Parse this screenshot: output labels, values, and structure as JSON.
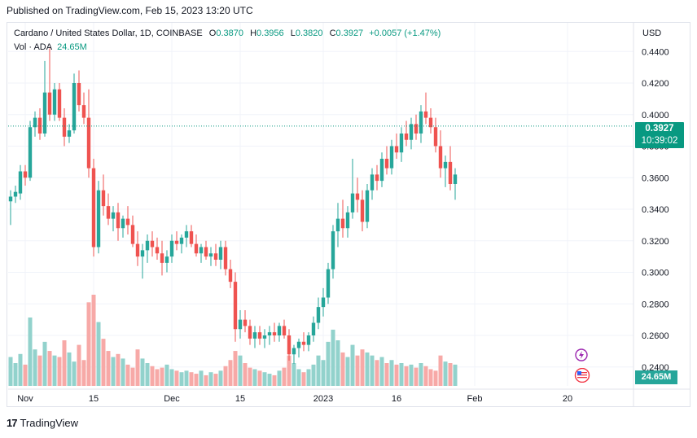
{
  "header": {
    "published": "Published on TradingView.com, Feb 15, 2023 13:20 UTC"
  },
  "legend": {
    "symbol": "Cardano / United States Dollar, 1D, COINBASE",
    "open_label": "O",
    "open": "0.3870",
    "high_label": "H",
    "high": "0.3956",
    "low_label": "L",
    "low": "0.3820",
    "close_label": "C",
    "close": "0.3927",
    "change": "+0.0057 (+1.47%)",
    "vol_label": "Vol · ADA",
    "vol_value": "24.65M"
  },
  "axis": {
    "currency": "USD"
  },
  "price_tag": {
    "price": "0.3927",
    "countdown": "10:39:02"
  },
  "volume_tag": "24.65M",
  "footer": {
    "brand": "TradingView",
    "logo": "17"
  },
  "colors": {
    "up": "#26a69a",
    "down": "#ef5350",
    "up_vol": "#92d2cc",
    "down_vol": "#f7a9a7",
    "grid": "#f0f3fa"
  },
  "chart_data": {
    "type": "candlestick",
    "title": "Cardano / United States Dollar, 1D, COINBASE",
    "ylim": [
      0.228,
      0.452
    ],
    "y_ticks": [
      "0.4400",
      "0.4200",
      "0.4000",
      "0.3800",
      "0.3600",
      "0.3400",
      "0.3200",
      "0.3000",
      "0.2800",
      "0.2600",
      "0.2400"
    ],
    "x_ticks": [
      {
        "label": "Nov",
        "index": 3
      },
      {
        "label": "15",
        "index": 17
      },
      {
        "label": "Dec",
        "index": 33
      },
      {
        "label": "15",
        "index": 47
      },
      {
        "label": "2023",
        "index": 64
      },
      {
        "label": "16",
        "index": 79
      },
      {
        "label": "Feb",
        "index": 95
      },
      {
        "label": "20",
        "index": 114
      }
    ],
    "volume_max": 120,
    "candles": [
      [
        0.345,
        0.352,
        0.33,
        0.348,
        38
      ],
      [
        0.348,
        0.355,
        0.344,
        0.351,
        30
      ],
      [
        0.35,
        0.368,
        0.346,
        0.364,
        42
      ],
      [
        0.364,
        0.368,
        0.355,
        0.36,
        28
      ],
      [
        0.36,
        0.396,
        0.358,
        0.392,
        90
      ],
      [
        0.392,
        0.402,
        0.386,
        0.398,
        48
      ],
      [
        0.398,
        0.404,
        0.384,
        0.388,
        40
      ],
      [
        0.388,
        0.434,
        0.386,
        0.414,
        58
      ],
      [
        0.414,
        0.442,
        0.396,
        0.4,
        46
      ],
      [
        0.4,
        0.42,
        0.396,
        0.416,
        40
      ],
      [
        0.416,
        0.42,
        0.396,
        0.398,
        38
      ],
      [
        0.398,
        0.404,
        0.38,
        0.386,
        60
      ],
      [
        0.386,
        0.394,
        0.382,
        0.39,
        44
      ],
      [
        0.39,
        0.426,
        0.388,
        0.42,
        32
      ],
      [
        0.42,
        0.428,
        0.402,
        0.406,
        54
      ],
      [
        0.406,
        0.414,
        0.394,
        0.398,
        34
      ],
      [
        0.398,
        0.416,
        0.36,
        0.366,
        110
      ],
      [
        0.366,
        0.372,
        0.31,
        0.316,
        120
      ],
      [
        0.316,
        0.358,
        0.312,
        0.352,
        84
      ],
      [
        0.352,
        0.362,
        0.336,
        0.342,
        62
      ],
      [
        0.342,
        0.35,
        0.33,
        0.334,
        46
      ],
      [
        0.334,
        0.342,
        0.326,
        0.338,
        38
      ],
      [
        0.338,
        0.344,
        0.32,
        0.328,
        42
      ],
      [
        0.328,
        0.336,
        0.322,
        0.334,
        36
      ],
      [
        0.334,
        0.342,
        0.324,
        0.33,
        28
      ],
      [
        0.33,
        0.336,
        0.316,
        0.318,
        24
      ],
      [
        0.318,
        0.326,
        0.304,
        0.31,
        48
      ],
      [
        0.31,
        0.318,
        0.296,
        0.314,
        36
      ],
      [
        0.314,
        0.324,
        0.306,
        0.32,
        30
      ],
      [
        0.32,
        0.326,
        0.31,
        0.316,
        26
      ],
      [
        0.316,
        0.322,
        0.308,
        0.312,
        22
      ],
      [
        0.312,
        0.32,
        0.298,
        0.306,
        24
      ],
      [
        0.306,
        0.314,
        0.3,
        0.31,
        28
      ],
      [
        0.31,
        0.324,
        0.306,
        0.32,
        22
      ],
      [
        0.32,
        0.326,
        0.314,
        0.318,
        20
      ],
      [
        0.318,
        0.324,
        0.312,
        0.322,
        18
      ],
      [
        0.322,
        0.33,
        0.316,
        0.326,
        20
      ],
      [
        0.326,
        0.33,
        0.316,
        0.318,
        18
      ],
      [
        0.318,
        0.324,
        0.31,
        0.312,
        16
      ],
      [
        0.312,
        0.318,
        0.306,
        0.316,
        20
      ],
      [
        0.316,
        0.32,
        0.308,
        0.31,
        14
      ],
      [
        0.31,
        0.316,
        0.304,
        0.312,
        18
      ],
      [
        0.312,
        0.318,
        0.304,
        0.308,
        16
      ],
      [
        0.308,
        0.32,
        0.302,
        0.316,
        20
      ],
      [
        0.316,
        0.32,
        0.298,
        0.302,
        26
      ],
      [
        0.302,
        0.308,
        0.29,
        0.294,
        34
      ],
      [
        0.294,
        0.3,
        0.256,
        0.264,
        46
      ],
      [
        0.264,
        0.276,
        0.258,
        0.27,
        40
      ],
      [
        0.27,
        0.276,
        0.262,
        0.266,
        30
      ],
      [
        0.266,
        0.27,
        0.254,
        0.258,
        24
      ],
      [
        0.258,
        0.266,
        0.252,
        0.262,
        22
      ],
      [
        0.262,
        0.266,
        0.254,
        0.258,
        20
      ],
      [
        0.258,
        0.264,
        0.252,
        0.26,
        18
      ],
      [
        0.26,
        0.266,
        0.254,
        0.262,
        16
      ],
      [
        0.262,
        0.268,
        0.256,
        0.26,
        14
      ],
      [
        0.26,
        0.268,
        0.256,
        0.266,
        20
      ],
      [
        0.266,
        0.27,
        0.258,
        0.26,
        24
      ],
      [
        0.26,
        0.264,
        0.244,
        0.248,
        40
      ],
      [
        0.248,
        0.254,
        0.242,
        0.252,
        30
      ],
      [
        0.252,
        0.258,
        0.246,
        0.256,
        22
      ],
      [
        0.256,
        0.262,
        0.25,
        0.254,
        18
      ],
      [
        0.254,
        0.262,
        0.25,
        0.26,
        22
      ],
      [
        0.26,
        0.272,
        0.256,
        0.268,
        28
      ],
      [
        0.268,
        0.284,
        0.264,
        0.278,
        40
      ],
      [
        0.278,
        0.29,
        0.272,
        0.284,
        34
      ],
      [
        0.284,
        0.306,
        0.28,
        0.302,
        58
      ],
      [
        0.302,
        0.33,
        0.296,
        0.326,
        74
      ],
      [
        0.326,
        0.344,
        0.316,
        0.334,
        60
      ],
      [
        0.334,
        0.346,
        0.322,
        0.328,
        44
      ],
      [
        0.328,
        0.342,
        0.322,
        0.338,
        38
      ],
      [
        0.338,
        0.372,
        0.334,
        0.35,
        54
      ],
      [
        0.35,
        0.36,
        0.338,
        0.346,
        40
      ],
      [
        0.346,
        0.352,
        0.326,
        0.332,
        48
      ],
      [
        0.332,
        0.356,
        0.328,
        0.352,
        44
      ],
      [
        0.352,
        0.366,
        0.346,
        0.362,
        40
      ],
      [
        0.362,
        0.368,
        0.352,
        0.358,
        34
      ],
      [
        0.358,
        0.376,
        0.354,
        0.372,
        38
      ],
      [
        0.372,
        0.38,
        0.362,
        0.366,
        30
      ],
      [
        0.366,
        0.384,
        0.362,
        0.38,
        34
      ],
      [
        0.38,
        0.388,
        0.372,
        0.376,
        28
      ],
      [
        0.376,
        0.392,
        0.37,
        0.388,
        30
      ],
      [
        0.388,
        0.396,
        0.38,
        0.384,
        26
      ],
      [
        0.384,
        0.398,
        0.378,
        0.394,
        28
      ],
      [
        0.394,
        0.4,
        0.384,
        0.388,
        24
      ],
      [
        0.388,
        0.406,
        0.382,
        0.402,
        30
      ],
      [
        0.402,
        0.414,
        0.394,
        0.398,
        26
      ],
      [
        0.398,
        0.404,
        0.388,
        0.392,
        22
      ],
      [
        0.392,
        0.398,
        0.376,
        0.38,
        20
      ],
      [
        0.38,
        0.39,
        0.36,
        0.366,
        40
      ],
      [
        0.366,
        0.374,
        0.354,
        0.37,
        32
      ],
      [
        0.37,
        0.38,
        0.352,
        0.356,
        30
      ],
      [
        0.356,
        0.366,
        0.346,
        0.362,
        28
      ]
    ]
  }
}
